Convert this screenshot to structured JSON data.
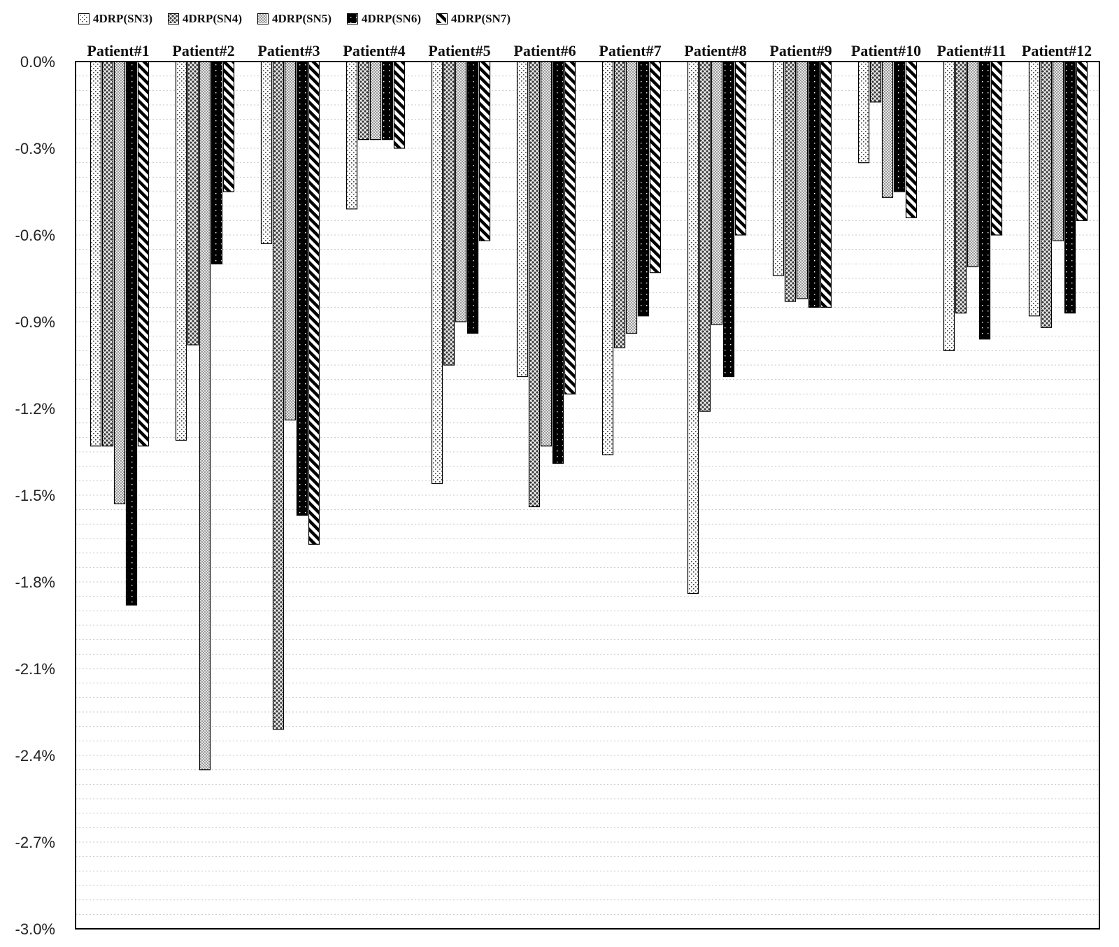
{
  "chart_data": {
    "type": "bar",
    "title": "",
    "xlabel": "",
    "ylabel": "",
    "ylim": [
      -3.0,
      0.0
    ],
    "y_ticks": [
      "0.0%",
      "-0.3%",
      "-0.6%",
      "-0.9%",
      "-1.2%",
      "-1.5%",
      "-1.8%",
      "-2.1%",
      "-2.4%",
      "-2.7%",
      "-3.0%"
    ],
    "y_unit": "%",
    "grid": true,
    "legend_position": "top-left",
    "categories": [
      "Patient#1",
      "Patient#2",
      "Patient#3",
      "Patient#4",
      "Patient#5",
      "Patient#6",
      "Patient#7",
      "Patient#8",
      "Patient#9",
      "Patient#10",
      "Patient#11",
      "Patient#12"
    ],
    "series": [
      {
        "name": "4DRP(SN3)",
        "pattern": "dots-light",
        "values": [
          -1.33,
          -1.31,
          -0.63,
          -0.51,
          -1.46,
          -1.09,
          -1.36,
          -1.84,
          -0.74,
          -0.35,
          -1.0,
          -0.88
        ]
      },
      {
        "name": "4DRP(SN4)",
        "pattern": "crosshatch-dark",
        "values": [
          -1.33,
          -0.98,
          -2.31,
          -0.27,
          -1.05,
          -1.54,
          -0.99,
          -1.21,
          -0.83,
          -0.14,
          -0.87,
          -0.92
        ]
      },
      {
        "name": "4DRP(SN5)",
        "pattern": "checker-grey",
        "values": [
          -1.53,
          -2.45,
          -1.24,
          -0.27,
          -0.9,
          -1.33,
          -0.94,
          -0.91,
          -0.82,
          -0.47,
          -0.71,
          -0.62
        ]
      },
      {
        "name": "4DRP(SN6)",
        "pattern": "black-dots",
        "values": [
          -1.88,
          -0.7,
          -1.57,
          -0.27,
          -0.94,
          -1.39,
          -0.88,
          -1.09,
          -0.85,
          -0.45,
          -0.96,
          -0.87
        ]
      },
      {
        "name": "4DRP(SN7)",
        "pattern": "diagonal-stripes",
        "values": [
          -1.33,
          -0.45,
          -1.67,
          -0.3,
          -0.62,
          -1.15,
          -0.73,
          -0.6,
          -0.85,
          -0.54,
          -0.6,
          -0.55
        ]
      }
    ]
  }
}
